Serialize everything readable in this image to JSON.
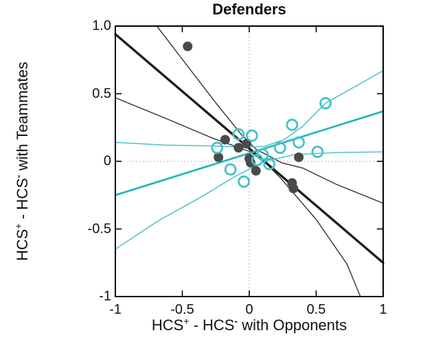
{
  "chart_data": {
    "type": "scatter",
    "title": "Defenders",
    "xlabel": {
      "base1": "HCS",
      "sup1": "+",
      "base2": " - HCS",
      "sup2": "-",
      "base3": " with Opponents"
    },
    "ylabel": {
      "base1": "HCS",
      "sup1": "+",
      "base2": " - HCS",
      "sup2": "-",
      "base3": " with Teammates"
    },
    "xlim": [
      -1,
      1
    ],
    "ylim": [
      -1,
      1
    ],
    "grid": false,
    "legend": "none",
    "xticks": [
      {
        "v": -1,
        "label": "-1"
      },
      {
        "v": -0.5,
        "label": "-0.5"
      },
      {
        "v": 0,
        "label": "0"
      },
      {
        "v": 0.5,
        "label": "0.5"
      },
      {
        "v": 1,
        "label": "1"
      }
    ],
    "yticks": [
      {
        "v": 1,
        "label": "1.0"
      },
      {
        "v": 0.5,
        "label": "0.5"
      },
      {
        "v": 0,
        "label": "0"
      },
      {
        "v": -0.5,
        "label": "-0.5"
      },
      {
        "v": -1,
        "label": "-1"
      }
    ],
    "zero_lines": {
      "color": "#c3c3c3",
      "dash": "2 3",
      "width": 1.3
    },
    "frame_color": "#000000",
    "tick_color": "#000000",
    "curves": [
      {
        "name": "black-fit-ci-upper",
        "color": "#3f3f3f",
        "width": 1.5,
        "points": [
          [
            -0.69,
            1.0
          ],
          [
            -0.45,
            0.69
          ],
          [
            -0.24,
            0.42
          ],
          [
            -0.06,
            0.2
          ],
          [
            0.05,
            0.09
          ],
          [
            0.24,
            -0.01
          ],
          [
            0.4,
            -0.05
          ],
          [
            0.65,
            -0.17
          ],
          [
            1.0,
            -0.31
          ]
        ]
      },
      {
        "name": "black-fit-ci-lower",
        "color": "#3f3f3f",
        "width": 1.5,
        "points": [
          [
            -1.0,
            0.47
          ],
          [
            -0.63,
            0.32
          ],
          [
            -0.27,
            0.17
          ],
          [
            0.01,
            0.07
          ],
          [
            0.12,
            -0.01
          ],
          [
            0.24,
            -0.13
          ],
          [
            0.5,
            -0.43
          ],
          [
            0.73,
            -0.76
          ],
          [
            0.83,
            -1.0
          ]
        ]
      },
      {
        "name": "teal-fit-ci-upper",
        "color": "#4cc2c8",
        "width": 1.5,
        "points": [
          [
            -1.0,
            0.14
          ],
          [
            -0.63,
            0.12
          ],
          [
            -0.32,
            0.115
          ],
          [
            -0.04,
            0.105
          ],
          [
            0.11,
            0.11
          ],
          [
            0.26,
            0.16
          ],
          [
            0.4,
            0.26
          ],
          [
            0.57,
            0.43
          ],
          [
            1.0,
            0.67
          ]
        ]
      },
      {
        "name": "teal-fit-ci-lower",
        "color": "#4cc2c8",
        "width": 1.5,
        "points": [
          [
            -1.0,
            -0.65
          ],
          [
            -0.68,
            -0.44
          ],
          [
            -0.37,
            -0.27
          ],
          [
            -0.12,
            -0.12
          ],
          [
            0.11,
            0.0
          ],
          [
            0.34,
            0.05
          ],
          [
            0.65,
            0.065
          ],
          [
            1.0,
            0.07
          ]
        ]
      },
      {
        "name": "black-fit-line",
        "color": "#1e1e1e",
        "width": 3.4,
        "points": [
          [
            -1,
            0.94
          ],
          [
            1,
            -0.75
          ]
        ]
      },
      {
        "name": "teal-fit-line",
        "color": "#29b6bd",
        "width": 2.8,
        "points": [
          [
            -1,
            -0.25
          ],
          [
            1,
            0.37
          ]
        ]
      }
    ],
    "series": [
      {
        "name": "dark-filled-points",
        "marker": "filled-circle",
        "fill": "#4a4a4a",
        "stroke": "none",
        "stroke_width": 0,
        "radius": 7,
        "points": [
          [
            -0.46,
            0.85
          ],
          [
            -0.18,
            0.16
          ],
          [
            -0.23,
            0.03
          ],
          [
            -0.08,
            0.1
          ],
          [
            -0.02,
            0.13
          ],
          [
            0.0,
            0.02
          ],
          [
            0.01,
            -0.01
          ],
          [
            0.05,
            -0.07
          ],
          [
            0.37,
            0.03
          ],
          [
            0.32,
            -0.16
          ],
          [
            0.33,
            -0.2
          ]
        ]
      },
      {
        "name": "teal-open-points",
        "marker": "open-circle",
        "fill": "none",
        "stroke": "#45c2c8",
        "stroke_width": 2.8,
        "radius": 7.5,
        "points": [
          [
            -0.24,
            0.1
          ],
          [
            -0.08,
            0.2
          ],
          [
            0.02,
            0.19
          ],
          [
            0.06,
            0.01
          ],
          [
            0.1,
            0.05
          ],
          [
            0.15,
            -0.02
          ],
          [
            0.23,
            0.1
          ],
          [
            0.32,
            0.27
          ],
          [
            0.37,
            0.14
          ],
          [
            0.57,
            0.43
          ],
          [
            0.51,
            0.07
          ],
          [
            -0.14,
            -0.06
          ],
          [
            -0.04,
            -0.15
          ]
        ]
      }
    ]
  }
}
